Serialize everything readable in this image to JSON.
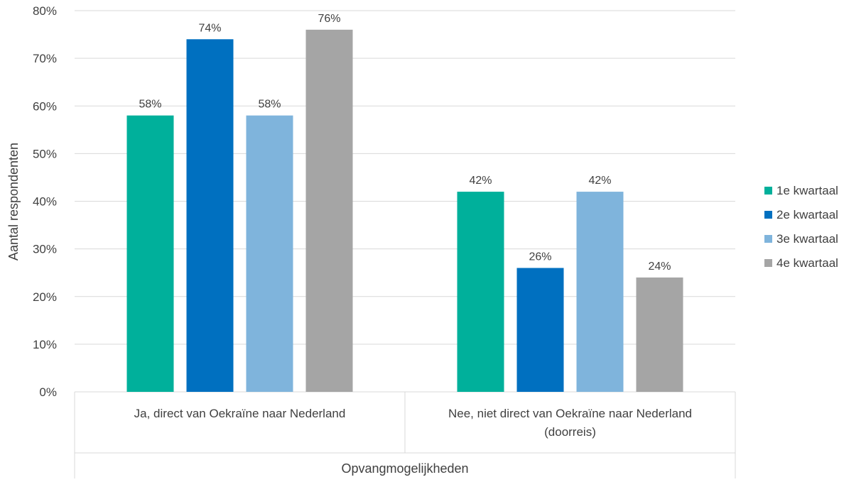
{
  "chart_data": {
    "type": "bar",
    "title": "",
    "ylabel": "Aantal respondenten",
    "xlabel": "Opvangmogelijkheden",
    "ylim": [
      0,
      80
    ],
    "yticks": [
      0,
      10,
      20,
      30,
      40,
      50,
      60,
      70,
      80
    ],
    "ytick_suffix": "%",
    "grid": true,
    "legend_position": "right",
    "categories": [
      [
        "Ja, direct van Oekraïne naar Nederland"
      ],
      [
        "Nee, niet direct van Oekraïne naar Nederland",
        "(doorreis)"
      ]
    ],
    "series": [
      {
        "name": "1e kwartaal",
        "color": "#00B09B",
        "values": [
          58,
          42
        ],
        "labels": [
          "58%",
          "42%"
        ]
      },
      {
        "name": "2e kwartaal",
        "color": "#0070C0",
        "values": [
          74,
          26
        ],
        "labels": [
          "74%",
          "26%"
        ]
      },
      {
        "name": "3e kwartaal",
        "color": "#7FB4DC",
        "values": [
          58,
          42
        ],
        "labels": [
          "58%",
          "42%"
        ]
      },
      {
        "name": "4e kwartaal",
        "color": "#A5A5A5",
        "values": [
          76,
          24
        ],
        "labels": [
          "76%",
          "24%"
        ]
      }
    ]
  }
}
